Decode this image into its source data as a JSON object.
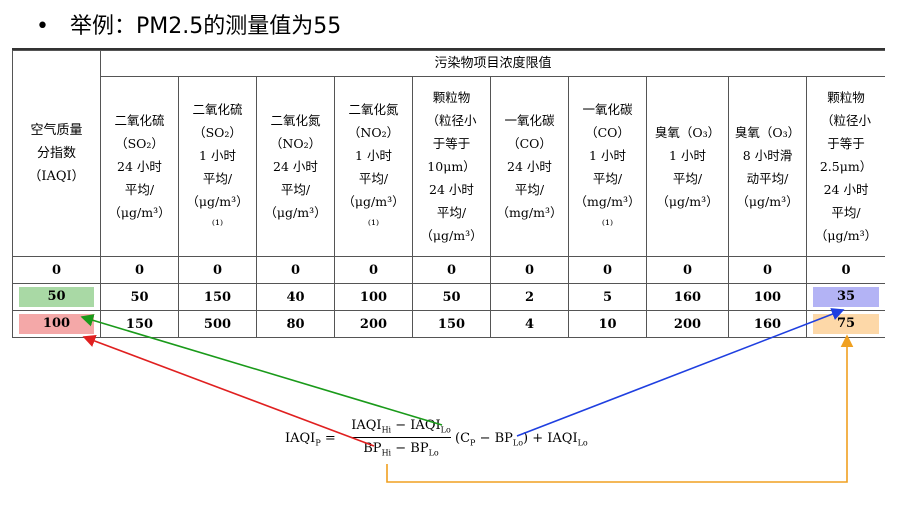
{
  "slide": {
    "bullet": "•",
    "title": "举例：PM2.5的测量值为55"
  },
  "table": {
    "group_header": "污染物项目浓度限值",
    "first_col_header": [
      "空气质量",
      "分指数",
      "（IAQI）"
    ],
    "columns": [
      {
        "lines": [
          "二氧化硫",
          "（SO₂）",
          "24 小时",
          "平均/",
          "（μg/m³）"
        ]
      },
      {
        "lines": [
          "二氧化硫",
          "（SO₂）",
          "1 小时",
          "平均/",
          "（μg/m³）⁽¹⁾"
        ]
      },
      {
        "lines": [
          "二氧化氮",
          "（NO₂）",
          "24 小时",
          "平均/",
          "（μg/m³）"
        ]
      },
      {
        "lines": [
          "二氧化氮",
          "（NO₂）",
          "1 小时",
          "平均/",
          "（μg/m³）⁽¹⁾"
        ]
      },
      {
        "lines": [
          "颗粒物",
          "（粒径小",
          "于等于",
          "10μm）",
          "24 小时",
          "平均/",
          "（μg/m³）"
        ]
      },
      {
        "lines": [
          "一氧化碳",
          "（CO）",
          "24 小时",
          "平均/",
          "（mg/m³）"
        ]
      },
      {
        "lines": [
          "一氧化碳",
          "（CO）",
          "1 小时",
          "平均/",
          "（mg/m³）⁽¹⁾"
        ]
      },
      {
        "lines": [
          "臭氧（O₃）",
          "1 小时",
          "平均/",
          "（μg/m³）"
        ]
      },
      {
        "lines": [
          "臭氧（O₃）",
          "8 小时滑",
          "动平均/",
          "（μg/m³）"
        ]
      },
      {
        "lines": [
          "颗粒物",
          "（粒径小",
          "于等于",
          "2.5μm）",
          "24 小时",
          "平均/",
          "（μg/m³）"
        ]
      }
    ],
    "rows": [
      [
        "0",
        "0",
        "0",
        "0",
        "0",
        "0",
        "0",
        "0",
        "0",
        "0",
        "0"
      ],
      [
        "50",
        "50",
        "150",
        "40",
        "100",
        "50",
        "2",
        "5",
        "160",
        "100",
        "35"
      ],
      [
        "100",
        "150",
        "500",
        "80",
        "200",
        "150",
        "4",
        "10",
        "200",
        "160",
        "75"
      ]
    ]
  },
  "formula": {
    "lhs": "IAQI",
    "lhs_sub": "P",
    "eq": "=",
    "num_a": "IAQI",
    "num_a_sub": "Hi",
    "minus": "−",
    "num_b": "IAQI",
    "num_b_sub": "Lo",
    "den_a": "BP",
    "den_a_sub": "Hi",
    "den_b": "BP",
    "den_b_sub": "Lo",
    "rhs_open": "(C",
    "rhs_c_sub": "P",
    "rhs_mid": "− BP",
    "rhs_bp_sub": "Lo",
    "rhs_close": ") + IAQI",
    "rhs_end_sub": "Lo"
  },
  "colors": {
    "green_arrow": "#1a9a1a",
    "red_arrow": "#e02020",
    "blue_arrow": "#1f3fe0",
    "orange_arrow": "#f0a020"
  }
}
